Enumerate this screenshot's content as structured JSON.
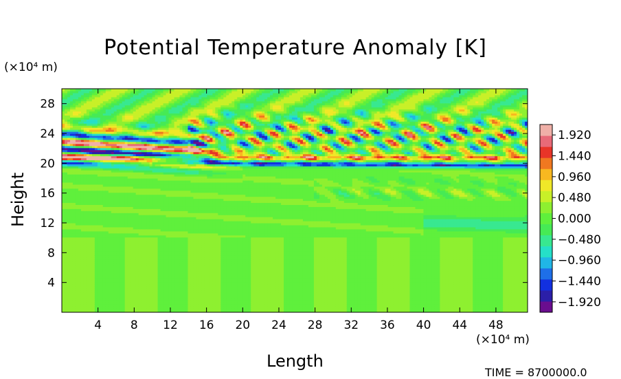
{
  "chart_data": {
    "type": "heatmap",
    "title": "Potential Temperature Anomaly [K]",
    "xlabel": "Length",
    "ylabel": "Height",
    "x_unit": "(×10⁴ m)",
    "y_unit": "(×10⁴ m)",
    "xlim": [
      0,
      51.5
    ],
    "ylim": [
      0,
      30
    ],
    "x_ticks": [
      4,
      8,
      12,
      16,
      20,
      24,
      28,
      32,
      36,
      40,
      44,
      48
    ],
    "y_ticks": [
      4,
      8,
      12,
      16,
      20,
      24,
      28
    ],
    "colorbar": {
      "min": -2.16,
      "max": 2.16,
      "labels": [
        "1.920",
        "1.440",
        "0.960",
        "0.480",
        "0.000",
        "−0.480",
        "−0.960",
        "−1.440",
        "−1.920"
      ],
      "label_values": [
        1.92,
        1.44,
        0.96,
        0.48,
        0.0,
        -0.48,
        -0.96,
        -1.44,
        -1.92
      ],
      "colors": [
        "#6a0d8f",
        "#2b1fa8",
        "#1230e0",
        "#1e6fe8",
        "#20b6e6",
        "#25e0c8",
        "#38e890",
        "#46ea55",
        "#5ff03c",
        "#8ef030",
        "#c8f028",
        "#f0e828",
        "#f8b820",
        "#f07820",
        "#e83428",
        "#e86a78",
        "#f0b0a8"
      ]
    },
    "field_features": [
      {
        "name": "strong band",
        "x_range": [
          0,
          18
        ],
        "y_range": [
          19.5,
          24.5
        ]
      },
      {
        "name": "wave packets",
        "x_range": [
          16,
          51.5
        ],
        "y_range": [
          19,
          29
        ]
      },
      {
        "name": "weak disturbances",
        "x_range": [
          28,
          51.5
        ],
        "y_range": [
          10,
          18
        ]
      }
    ]
  },
  "time_label": "TIME = 8700000.0"
}
